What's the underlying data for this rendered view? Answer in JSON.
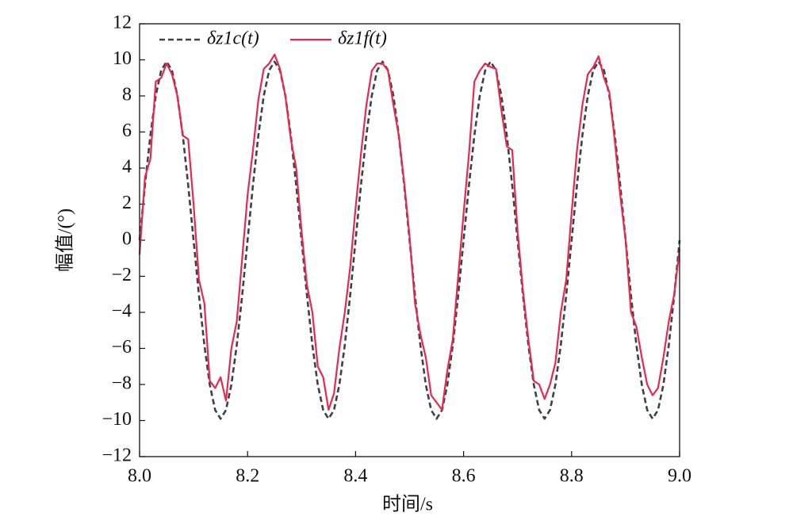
{
  "chart_data": {
    "type": "line",
    "xlabel": "时间/s",
    "ylabel": "幅值/(°)",
    "x": [
      8.0,
      8.01,
      8.02,
      8.03,
      8.04,
      8.05,
      8.06,
      8.07,
      8.08,
      8.09,
      8.1,
      8.11,
      8.12,
      8.13,
      8.14,
      8.15,
      8.16,
      8.17,
      8.18,
      8.19,
      8.2,
      8.21,
      8.22,
      8.23,
      8.24,
      8.25,
      8.26,
      8.27,
      8.28,
      8.29,
      8.3,
      8.31,
      8.32,
      8.33,
      8.34,
      8.35,
      8.36,
      8.37,
      8.38,
      8.39,
      8.4,
      8.41,
      8.42,
      8.43,
      8.44,
      8.45,
      8.46,
      8.47,
      8.48,
      8.49,
      8.5,
      8.51,
      8.52,
      8.53,
      8.54,
      8.55,
      8.56,
      8.57,
      8.58,
      8.59,
      8.6,
      8.61,
      8.62,
      8.63,
      8.64,
      8.65,
      8.66,
      8.67,
      8.68,
      8.69,
      8.7,
      8.71,
      8.72,
      8.73,
      8.74,
      8.75,
      8.76,
      8.77,
      8.78,
      8.79,
      8.8,
      8.81,
      8.82,
      8.83,
      8.84,
      8.85,
      8.86,
      8.87,
      8.88,
      8.89,
      8.9,
      8.91,
      8.92,
      8.93,
      8.94,
      8.95,
      8.96,
      8.97,
      8.98,
      8.99,
      9.0
    ],
    "series": [
      {
        "name": "δz1c(t)",
        "color": "#3c4248",
        "dashed": true,
        "values": [
          0,
          3.06,
          5.82,
          8.01,
          9.42,
          9.9,
          9.42,
          8.01,
          5.82,
          3.06,
          0,
          -3.06,
          -5.82,
          -8.01,
          -9.42,
          -9.9,
          -9.42,
          -8.01,
          -5.82,
          -3.06,
          0,
          3.06,
          5.82,
          8.01,
          9.42,
          9.9,
          9.42,
          8.01,
          5.82,
          3.06,
          0,
          -3.06,
          -5.82,
          -8.01,
          -9.42,
          -9.9,
          -9.42,
          -8.01,
          -5.82,
          -3.06,
          0,
          3.06,
          5.82,
          8.01,
          9.42,
          9.9,
          9.42,
          8.01,
          5.82,
          3.06,
          0,
          -3.06,
          -5.82,
          -8.01,
          -9.42,
          -9.9,
          -9.42,
          -8.01,
          -5.82,
          -3.06,
          0,
          3.06,
          5.82,
          8.01,
          9.42,
          9.9,
          9.42,
          8.01,
          5.82,
          3.06,
          0,
          -3.06,
          -5.82,
          -8.01,
          -9.42,
          -9.9,
          -9.42,
          -8.01,
          -5.82,
          -3.06,
          0,
          3.06,
          5.82,
          8.01,
          9.42,
          9.9,
          9.42,
          8.01,
          5.82,
          3.06,
          0,
          -3.06,
          -5.82,
          -8.01,
          -9.42,
          -9.9,
          -9.42,
          -8.01,
          -5.82,
          -3.06,
          0
        ]
      },
      {
        "name": "δz1f(t)",
        "color": "#e8294f",
        "dashed": false,
        "values": [
          -0.8,
          3.5,
          4.5,
          8.8,
          9.0,
          9.8,
          9.2,
          8.0,
          5.8,
          5.6,
          2.0,
          -2.2,
          -3.5,
          -7.8,
          -8.2,
          -7.6,
          -8.9,
          -6.0,
          -4.5,
          -1.0,
          2.5,
          5.0,
          7.8,
          9.5,
          9.8,
          10.3,
          9.5,
          8.0,
          5.6,
          4.0,
          0.5,
          -2.5,
          -4.0,
          -7.0,
          -7.6,
          -9.4,
          -8.5,
          -6.0,
          -4.0,
          -1.5,
          1.8,
          4.8,
          7.5,
          9.4,
          9.8,
          9.8,
          9.4,
          7.5,
          5.8,
          3.2,
          0.2,
          -3.5,
          -5.2,
          -6.5,
          -8.6,
          -9.0,
          -9.4,
          -7.2,
          -5.5,
          -2.0,
          1.5,
          4.8,
          8.8,
          9.4,
          9.8,
          9.6,
          9.5,
          7.2,
          5.2,
          5.0,
          0.5,
          -2.8,
          -5.5,
          -7.8,
          -8.0,
          -8.8,
          -8.0,
          -6.8,
          -4.0,
          -2.2,
          1.5,
          5.0,
          7.5,
          9.2,
          9.6,
          10.2,
          9.0,
          8.2,
          5.5,
          2.5,
          0.0,
          -4.0,
          -4.8,
          -6.5,
          -8.0,
          -8.6,
          -8.2,
          -6.5,
          -4.5,
          -3.0,
          -0.5
        ]
      }
    ],
    "xlim": [
      8,
      9
    ],
    "ylim": [
      -12,
      12
    ],
    "xticks": [
      {
        "value": 8,
        "label": "8.0"
      },
      8.2,
      8.4,
      8.6,
      8.8,
      {
        "value": 9,
        "label": "9.0"
      }
    ],
    "yticks": [
      {
        "value": -12,
        "label": "−12"
      },
      {
        "value": -10,
        "label": "−10"
      },
      {
        "value": -8,
        "label": "−8"
      },
      {
        "value": -6,
        "label": "−6"
      },
      {
        "value": -4,
        "label": "−4"
      },
      {
        "value": -2,
        "label": "−2"
      },
      0,
      2,
      4,
      6,
      8,
      10,
      12
    ],
    "legend": "upper-left"
  }
}
